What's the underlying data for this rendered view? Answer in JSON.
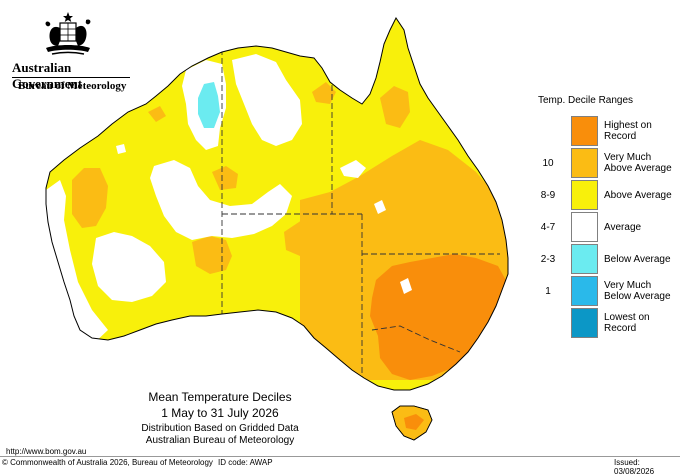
{
  "header": {
    "government": "Australian Government",
    "bureau": "Bureau of Meteorology"
  },
  "legend": {
    "title": "Temp. Decile Ranges",
    "items": [
      {
        "code": "",
        "label": "Highest on Record",
        "color": "#F98E0B"
      },
      {
        "code": "10",
        "label": "Very Much Above Average",
        "color": "#FBBC14"
      },
      {
        "code": "8-9",
        "label": "Above Average",
        "color": "#F8F00B"
      },
      {
        "code": "4-7",
        "label": "Average",
        "color": "#FFFFFF"
      },
      {
        "code": "2-3",
        "label": "Below Average",
        "color": "#6BEBF0"
      },
      {
        "code": "1",
        "label": "Very Much Below Average",
        "color": "#2AB9EA"
      },
      {
        "code": "",
        "label": "Lowest on Record",
        "color": "#0C97C6"
      }
    ]
  },
  "map": {
    "title": "Mean Temperature Deciles",
    "period": "1 May to 31 July 2026",
    "note": "Distribution Based on Gridded Data",
    "source": "Australian Bureau of Meteorology"
  },
  "footer": {
    "url": "http://www.bom.gov.au",
    "copyright": "© Commonwealth of Australia 2026, Bureau of Meteorology",
    "id_code": "ID code: AWAP",
    "issued": "Issued: 03/08/2026"
  }
}
